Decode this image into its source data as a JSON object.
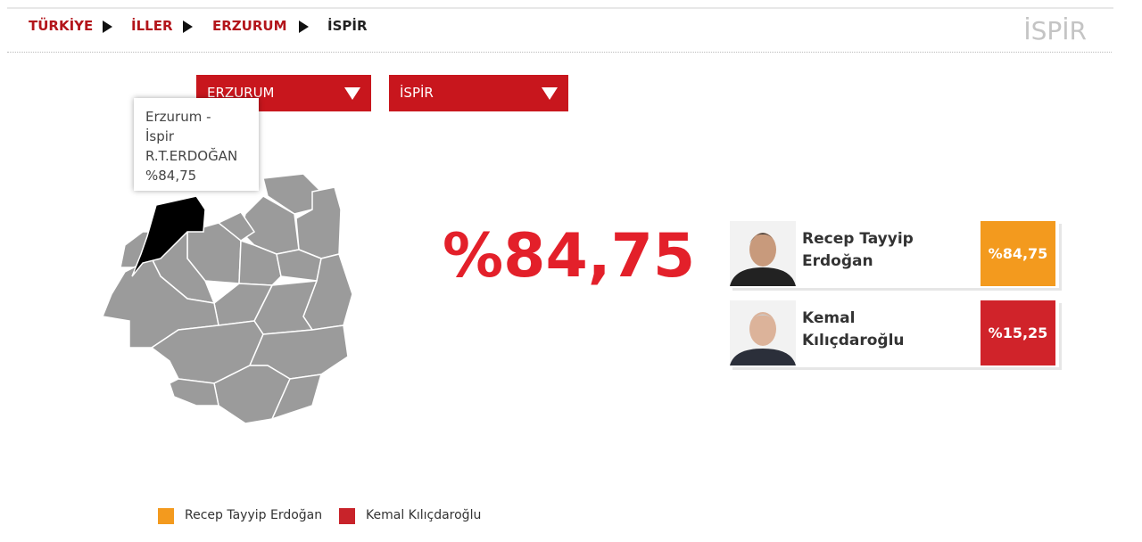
{
  "breadcrumb": [
    "TÜRKİYE",
    "İLLER",
    "ERZURUM",
    "İSPİR"
  ],
  "page_title": "İSPİR",
  "dropdowns": [
    "ERZURUM",
    "İSPİR"
  ],
  "tooltip": [
    "Erzurum -",
    "İspir",
    "R.T.ERDOĞAN",
    "%84,75"
  ],
  "big_result": "%84,75",
  "candidates": [
    {
      "name": "Recep Tayyip Erdoğan",
      "percent": "%84,75"
    },
    {
      "name": "Kemal Kılıçdaroğlu",
      "percent": "%15,25"
    }
  ],
  "legend": [
    "Recep Tayyip Erdoğan",
    "Kemal Kılıçdaroğlu"
  ]
}
